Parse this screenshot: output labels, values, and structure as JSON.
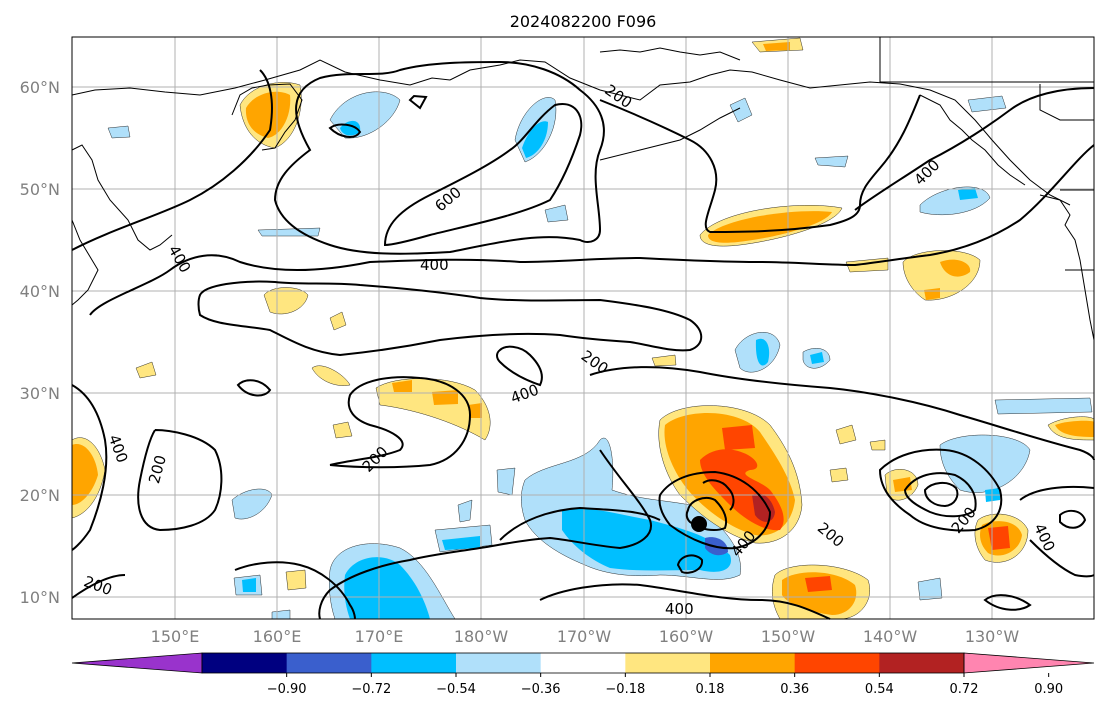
{
  "title": "2024082200 F096",
  "map": {
    "lat_labels": [
      "60°N",
      "50°N",
      "40°N",
      "30°N",
      "20°N",
      "10°N"
    ],
    "lon_labels": [
      "150°E",
      "160°E",
      "170°E",
      "180°W",
      "170°W",
      "160°W",
      "150°W",
      "140°W",
      "130°W"
    ],
    "contour_labels": [
      "200",
      "600",
      "400",
      "400",
      "400",
      "200",
      "400",
      "200",
      "200",
      "200",
      "400",
      "200",
      "400",
      "400",
      "400",
      "200"
    ],
    "storm_marker": "filled-circle"
  },
  "colorbar": {
    "ticks": [
      "−0.90",
      "−0.72",
      "−0.54",
      "−0.36",
      "−0.18",
      "0.18",
      "0.36",
      "0.54",
      "0.72",
      "0.90"
    ],
    "colors": [
      "#9933cc",
      "#000080",
      "#3a5fcd",
      "#00bfff",
      "#b0e0fa",
      "#ffffff",
      "#ffe680",
      "#ffa500",
      "#ff4500",
      "#b22222",
      "#ff85b0"
    ]
  },
  "colors": {
    "light_blue": "#b0e0fa",
    "blue": "#00bfff",
    "med_blue": "#3a5fcd",
    "yellow": "#ffe680",
    "orange": "#ffa500",
    "red_orange": "#ff4500",
    "dark_red": "#b22222"
  }
}
